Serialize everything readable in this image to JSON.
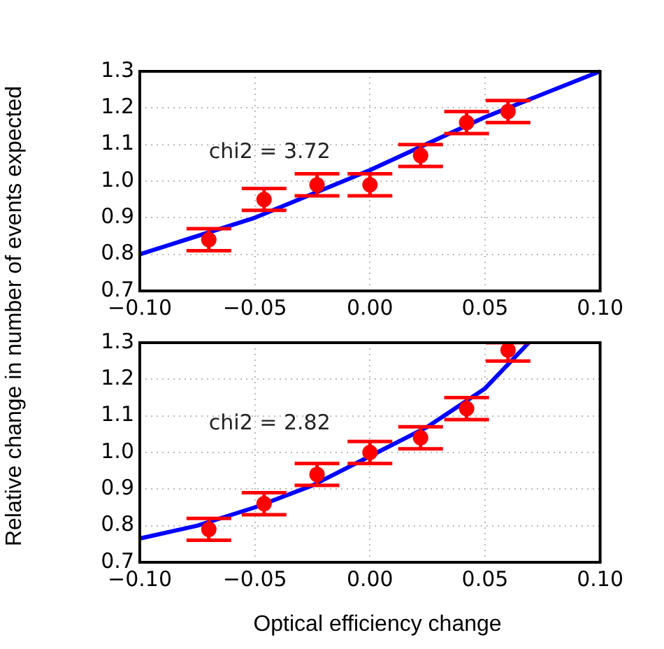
{
  "chart_data": [
    {
      "type": "scatter",
      "ylabel": "Relative change in number of events expected",
      "annotations": [
        "chi2 = 3.72"
      ],
      "series": [
        {
          "marker": "circle",
          "color": "#ff0000",
          "x": [
            -0.07,
            -0.046,
            -0.023,
            0.0,
            0.022,
            0.042,
            0.06
          ],
          "values": [
            0.84,
            0.95,
            0.99,
            0.99,
            1.07,
            1.16,
            1.19
          ],
          "errors": [
            0.03,
            0.03,
            0.03,
            0.03,
            0.03,
            0.03,
            0.03
          ]
        },
        {
          "type": "line",
          "color": "#0000ff",
          "x": [
            -0.1,
            -0.05,
            0.0,
            0.05,
            0.1
          ],
          "values": [
            0.8,
            0.9,
            1.03,
            1.175,
            1.3
          ]
        }
      ],
      "xlim": [
        -0.1,
        0.1
      ],
      "ylim": [
        0.7,
        1.3
      ],
      "xticks": [
        {
          "value": -0.1,
          "label": "−0.10"
        },
        {
          "value": -0.05,
          "label": "−0.05"
        },
        {
          "value": 0,
          "label": "0.00"
        },
        {
          "value": 0.05,
          "label": "0.05"
        },
        {
          "value": 0.1,
          "label": "0.10"
        }
      ],
      "yticks": [
        {
          "value": 0.7,
          "label": "0.7"
        },
        {
          "value": 0.8,
          "label": "0.8"
        },
        {
          "value": 0.9,
          "label": "0.9"
        },
        {
          "value": 1.0,
          "label": "1.0"
        },
        {
          "value": 1.1,
          "label": "1.1"
        },
        {
          "value": 1.2,
          "label": "1.2"
        },
        {
          "value": 1.3,
          "label": "1.3"
        }
      ],
      "grid": true
    },
    {
      "type": "scatter",
      "xlabel": "Optical efficiency change",
      "annotations": [
        "chi2 = 2.82"
      ],
      "series": [
        {
          "marker": "circle",
          "color": "#ff0000",
          "x": [
            -0.07,
            -0.046,
            -0.023,
            0.0,
            0.022,
            0.042,
            0.06
          ],
          "values": [
            0.79,
            0.86,
            0.94,
            1.0,
            1.04,
            1.12,
            1.28
          ],
          "errors": [
            0.03,
            0.03,
            0.03,
            0.03,
            0.03,
            0.03,
            [
              1.25,
              1.3
            ]
          ]
        },
        {
          "type": "line",
          "color": "#0000ff",
          "x": [
            -0.1,
            -0.075,
            -0.05,
            -0.025,
            0.0,
            0.025,
            0.05,
            0.069
          ],
          "values": [
            0.765,
            0.8,
            0.85,
            0.91,
            0.99,
            1.07,
            1.175,
            1.3
          ]
        }
      ],
      "xlim": [
        -0.1,
        0.1
      ],
      "ylim": [
        0.7,
        1.3
      ],
      "xticks": [
        {
          "value": -0.1,
          "label": "−0.10"
        },
        {
          "value": -0.05,
          "label": "−0.05"
        },
        {
          "value": 0,
          "label": "0.00"
        },
        {
          "value": 0.05,
          "label": "0.05"
        },
        {
          "value": 0.1,
          "label": "0.10"
        }
      ],
      "yticks": [
        {
          "value": 0.7,
          "label": "0.7"
        },
        {
          "value": 0.8,
          "label": "0.8"
        },
        {
          "value": 0.9,
          "label": "0.9"
        },
        {
          "value": 1.0,
          "label": "1.0"
        },
        {
          "value": 1.1,
          "label": "1.1"
        },
        {
          "value": 1.2,
          "label": "1.2"
        },
        {
          "value": 1.3,
          "label": "1.3"
        }
      ],
      "grid": true
    }
  ]
}
